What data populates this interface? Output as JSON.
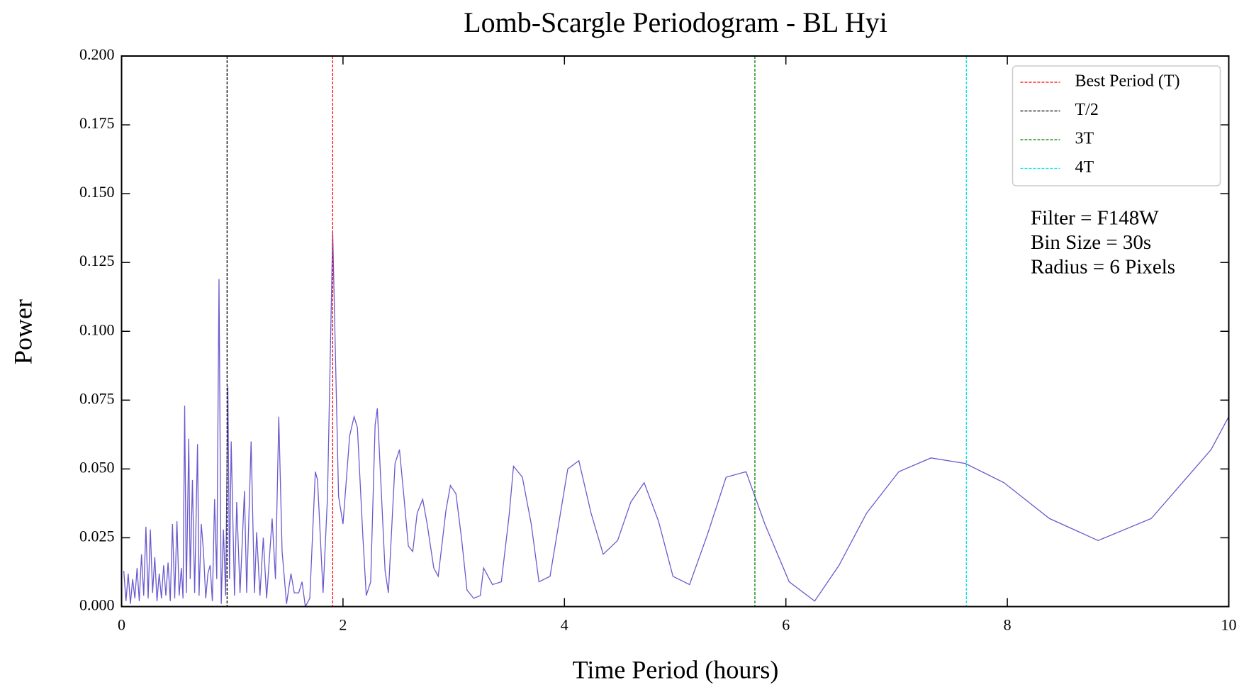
{
  "chart_data": {
    "type": "line",
    "title": "Lomb-Scargle Periodogram - BL Hyi",
    "x_label": "Time Period (hours)",
    "y_label": "Power",
    "x": [
      0.02,
      0.04,
      0.06,
      0.08,
      0.1,
      0.12,
      0.14,
      0.16,
      0.18,
      0.2,
      0.22,
      0.24,
      0.26,
      0.28,
      0.3,
      0.32,
      0.34,
      0.36,
      0.38,
      0.4,
      0.42,
      0.44,
      0.46,
      0.48,
      0.5,
      0.52,
      0.54,
      0.555,
      0.57,
      0.585,
      0.607,
      0.62,
      0.64,
      0.66,
      0.686,
      0.7,
      0.72,
      0.74,
      0.76,
      0.78,
      0.8,
      0.82,
      0.84,
      0.86,
      0.88,
      0.9,
      0.92,
      0.94,
      0.96,
      0.975,
      0.99,
      1.02,
      1.04,
      1.07,
      1.11,
      1.13,
      1.17,
      1.2,
      1.22,
      1.25,
      1.28,
      1.31,
      1.36,
      1.39,
      1.42,
      1.45,
      1.49,
      1.53,
      1.56,
      1.6,
      1.63,
      1.66,
      1.7,
      1.75,
      1.77,
      1.82,
      1.86,
      1.907,
      1.96,
      2.0,
      2.06,
      2.1,
      2.13,
      2.18,
      2.21,
      2.25,
      2.29,
      2.31,
      2.38,
      2.41,
      2.47,
      2.51,
      2.55,
      2.59,
      2.63,
      2.67,
      2.72,
      2.76,
      2.82,
      2.86,
      2.93,
      2.97,
      3.02,
      3.07,
      3.12,
      3.18,
      3.24,
      3.27,
      3.35,
      3.43,
      3.5,
      3.54,
      3.62,
      3.7,
      3.77,
      3.87,
      4.03,
      4.13,
      4.24,
      4.35,
      4.48,
      4.6,
      4.72,
      4.85,
      4.98,
      5.13,
      5.29,
      5.46,
      5.64,
      5.81,
      6.03,
      6.26,
      6.48,
      6.73,
      7.02,
      7.31,
      7.62,
      7.97,
      8.38,
      8.82,
      9.3,
      9.84,
      10.0
    ],
    "series": [
      {
        "name": "Power",
        "color": "#6a5acd",
        "values": [
          0.013,
          0.002,
          0.012,
          0.001,
          0.01,
          0.003,
          0.014,
          0.002,
          0.019,
          0.004,
          0.029,
          0.003,
          0.028,
          0.005,
          0.018,
          0.002,
          0.012,
          0.003,
          0.015,
          0.004,
          0.016,
          0.002,
          0.03,
          0.003,
          0.031,
          0.004,
          0.014,
          0.003,
          0.073,
          0.005,
          0.061,
          0.01,
          0.046,
          0.005,
          0.059,
          0.004,
          0.03,
          0.02,
          0.003,
          0.012,
          0.015,
          0.002,
          0.039,
          0.01,
          0.119,
          0.001,
          0.028,
          0.004,
          0.08,
          0.01,
          0.06,
          0.004,
          0.038,
          0.005,
          0.042,
          0.005,
          0.06,
          0.005,
          0.027,
          0.004,
          0.025,
          0.003,
          0.032,
          0.01,
          0.069,
          0.02,
          0.001,
          0.012,
          0.005,
          0.005,
          0.009,
          0.0,
          0.003,
          0.049,
          0.046,
          0.005,
          0.04,
          0.136,
          0.04,
          0.03,
          0.062,
          0.069,
          0.065,
          0.025,
          0.004,
          0.009,
          0.066,
          0.072,
          0.013,
          0.005,
          0.052,
          0.057,
          0.04,
          0.022,
          0.02,
          0.034,
          0.039,
          0.03,
          0.014,
          0.011,
          0.035,
          0.044,
          0.041,
          0.025,
          0.006,
          0.003,
          0.004,
          0.014,
          0.008,
          0.009,
          0.033,
          0.051,
          0.047,
          0.03,
          0.009,
          0.011,
          0.05,
          0.053,
          0.034,
          0.019,
          0.024,
          0.038,
          0.045,
          0.031,
          0.011,
          0.008,
          0.026,
          0.047,
          0.049,
          0.03,
          0.009,
          0.002,
          0.015,
          0.034,
          0.049,
          0.054,
          0.052,
          0.045,
          0.032,
          0.024,
          0.032,
          0.057,
          0.069
        ]
      }
    ],
    "vlines": [
      {
        "name": "Best Period (T)",
        "x": 1.907,
        "color": "#ff0000"
      },
      {
        "name": "T/2",
        "x": 0.953,
        "color": "#000000"
      },
      {
        "name": "3T",
        "x": 5.72,
        "color": "#008000"
      },
      {
        "name": "4T",
        "x": 7.63,
        "color": "#00e5ee"
      }
    ],
    "annotation": [
      "Filter = F148W",
      "Bin Size = 30s",
      "Radius = 6 Pixels"
    ],
    "xlim": [
      0,
      10
    ],
    "xticks": [
      0,
      2,
      4,
      6,
      8,
      10
    ],
    "ylim": [
      0,
      0.2
    ],
    "yticks": [
      {
        "value": 0,
        "label": "0.000"
      },
      {
        "value": 0.025,
        "label": "0.025"
      },
      {
        "value": 0.05,
        "label": "0.050"
      },
      {
        "value": 0.075,
        "label": "0.075"
      },
      {
        "value": 0.1,
        "label": "0.100"
      },
      {
        "value": 0.125,
        "label": "0.125"
      },
      {
        "value": 0.15,
        "label": "0.150"
      },
      {
        "value": 0.175,
        "label": "0.175"
      },
      {
        "value": 0.2,
        "label": "0.200"
      }
    ],
    "legend": "upper right",
    "grid": false
  }
}
